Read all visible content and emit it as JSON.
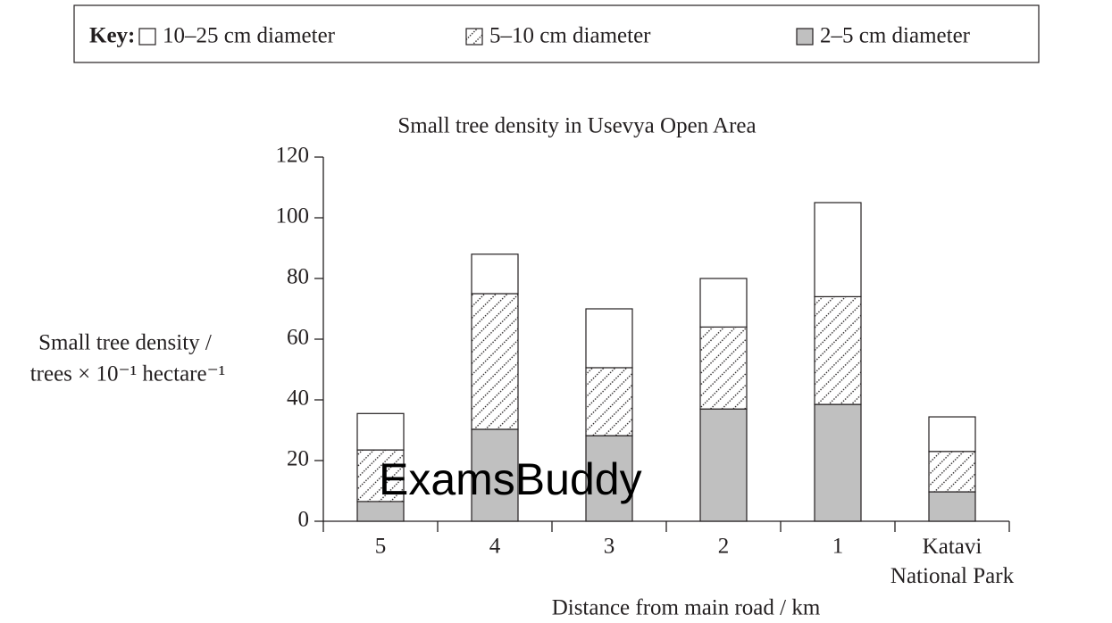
{
  "chart_data": {
    "type": "stacked_bar",
    "title": "Small tree density in Usevya Open Area",
    "legend_title": "Key:",
    "x_label": "Distance from main road / km",
    "y_label": [
      "Small tree density /",
      "trees × 10⁻¹ hectare⁻¹"
    ],
    "annotation": "ExamsBuddy",
    "categories": [
      "5",
      "4",
      "3",
      "2",
      "1",
      "Katavi National Park"
    ],
    "series": [
      {
        "name": "2–5 cm diameter",
        "color": "#c0c0c0",
        "values": [
          6.5,
          30.3,
          28.2,
          37,
          38.5,
          9.7
        ]
      },
      {
        "name": "5–10 cm diameter",
        "color": "#231f20",
        "fill_pattern": "dotted-diagonal",
        "values": [
          17,
          44.7,
          22.4,
          27,
          35.5,
          13.3
        ]
      },
      {
        "name": "10–25 cm diameter",
        "color": "#ffffff",
        "values": [
          12,
          13,
          19.4,
          16,
          31,
          11.4
        ]
      }
    ],
    "legend_order": [
      2,
      1,
      0
    ],
    "ylim": [
      0,
      120
    ],
    "yticks": [
      0,
      20,
      40,
      60,
      80,
      100,
      120
    ]
  }
}
